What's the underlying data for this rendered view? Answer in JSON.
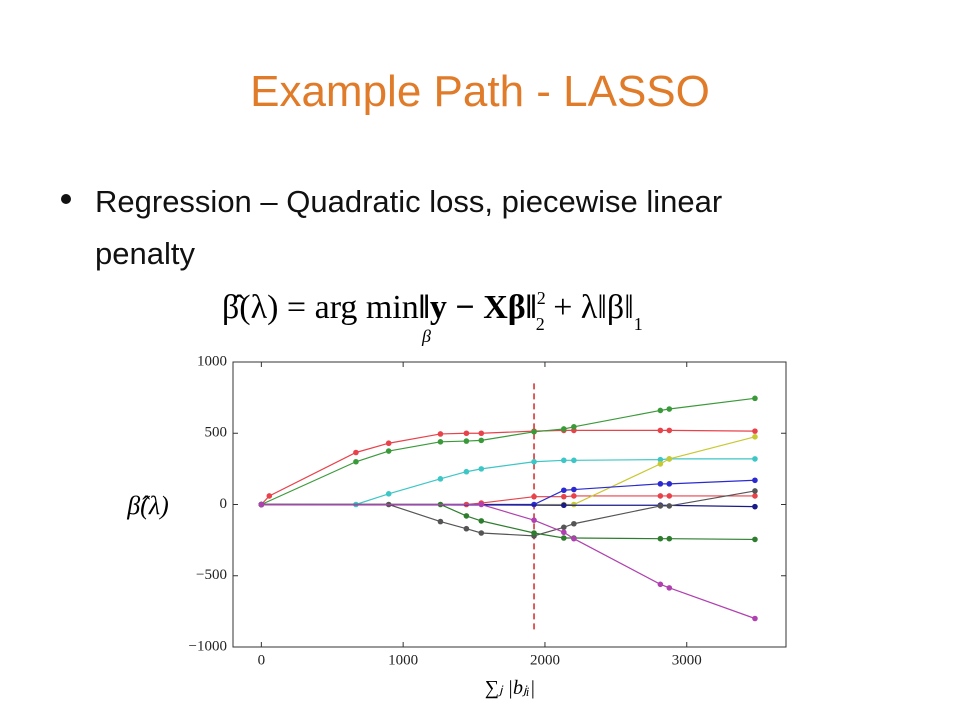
{
  "slide": {
    "title": "Example Path - LASSO",
    "bullet_lines": [
      "Regression – Quadratic loss, piecewise linear",
      "penalty"
    ],
    "formula": {
      "lhs": "β̂(λ) = arg min",
      "under": "β",
      "body": "‖y − Xβ‖",
      "sup": "2",
      "sub": "2",
      "rest": " + λ‖β‖",
      "sub2": "1"
    }
  },
  "chart_data": {
    "type": "line",
    "x_label": "∑ⱼ |bⱼᵢ|",
    "y_label": "β̂(λ)",
    "xlim": [
      -200,
      3700
    ],
    "ylim": [
      -1000,
      1000
    ],
    "xticks": [
      0,
      1000,
      2000,
      3000
    ],
    "yticks": [
      {
        "value": -1000,
        "label": "−1000"
      },
      {
        "value": -500,
        "label": "−500"
      },
      0,
      500,
      1000
    ],
    "vline_x": 1923,
    "vline_color": "#d62728",
    "series": [
      {
        "color": "#e8424a",
        "x": [
          0,
          56,
          667,
          898,
          1263,
          1446,
          1551,
          1923,
          2133,
          2204,
          2814,
          2877,
          3481
        ],
        "values": [
          0,
          60,
          365,
          430,
          495,
          500,
          500,
          515,
          520,
          520,
          520,
          520,
          515
        ]
      },
      {
        "color": "#3a9a3a",
        "x": [
          0,
          667,
          898,
          1263,
          1446,
          1551,
          1923,
          2133,
          2204,
          2814,
          2877,
          3481
        ],
        "values": [
          0,
          300,
          375,
          440,
          445,
          450,
          510,
          530,
          545,
          660,
          670,
          745
        ]
      },
      {
        "color": "#3cc6c6",
        "x": [
          0,
          667,
          898,
          1263,
          1446,
          1551,
          1923,
          2133,
          2204,
          2814,
          2877,
          3481
        ],
        "values": [
          0,
          0,
          75,
          180,
          230,
          250,
          300,
          310,
          310,
          315,
          320,
          320
        ]
      },
      {
        "color": "#e8424a",
        "x": [
          0,
          1446,
          1551,
          1923,
          2133,
          2204,
          2814,
          2877,
          3481
        ],
        "values": [
          0,
          0,
          10,
          55,
          55,
          60,
          60,
          60,
          60
        ]
      },
      {
        "color": "#c8c832",
        "x": [
          0,
          2133,
          2204,
          2814,
          2877,
          3481
        ],
        "values": [
          0,
          0,
          0,
          285,
          320,
          475
        ]
      },
      {
        "color": "#2a2ad0",
        "x": [
          0,
          1923,
          2133,
          2204,
          2814,
          2877,
          3481
        ],
        "values": [
          0,
          0,
          100,
          105,
          145,
          145,
          170
        ]
      },
      {
        "color": "#1a1a8a",
        "x": [
          0,
          2133,
          2814,
          3481
        ],
        "values": [
          0,
          -5,
          -5,
          -15
        ]
      },
      {
        "color": "#555555",
        "x": [
          0,
          898,
          1263,
          1446,
          1551,
          1923,
          2133,
          2204,
          2814,
          2877,
          3481
        ],
        "values": [
          0,
          0,
          -120,
          -170,
          -200,
          -220,
          -160,
          -135,
          -10,
          -10,
          95
        ]
      },
      {
        "color": "#2e7d2e",
        "x": [
          0,
          1263,
          1446,
          1551,
          1923,
          2133,
          2204,
          2814,
          2877,
          3481
        ],
        "values": [
          0,
          0,
          -80,
          -115,
          -200,
          -235,
          -235,
          -240,
          -240,
          -245
        ]
      },
      {
        "color": "#b040b0",
        "x": [
          0,
          1551,
          1923,
          2133,
          2204,
          2814,
          2877,
          3481
        ],
        "values": [
          0,
          0,
          -110,
          -195,
          -240,
          -560,
          -585,
          -800
        ]
      }
    ]
  }
}
